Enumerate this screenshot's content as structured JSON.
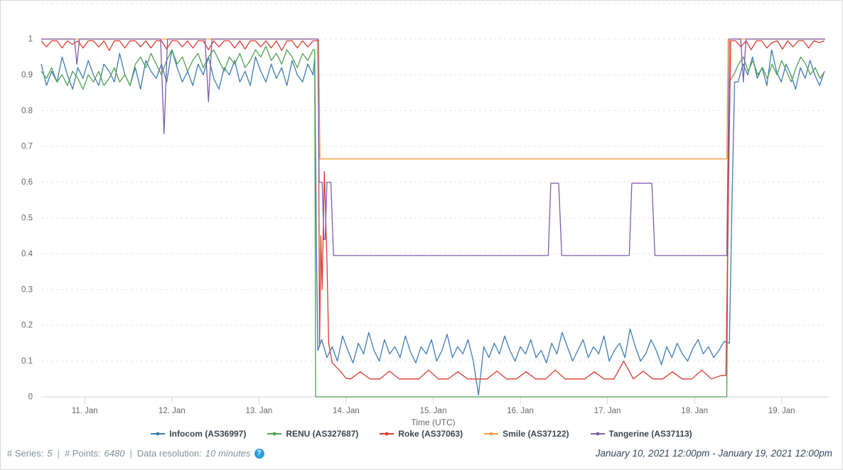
{
  "chart_data": {
    "type": "line",
    "title": "",
    "xlabel": "Time (UTC)",
    "ylabel": "",
    "x_unit": "days since January 10, 2021 12:00pm UTC",
    "x_range": [
      0,
      9
    ],
    "ylim": [
      0,
      1.1
    ],
    "grid": "horizontal-dashed",
    "legend_position": "bottom",
    "y_ticks": [
      {
        "value": 1,
        "label": "1"
      },
      {
        "value": 0.9,
        "label": "0.9"
      },
      {
        "value": 0.8,
        "label": "0.8"
      },
      {
        "value": 0.7,
        "label": "0.7"
      },
      {
        "value": 0.6,
        "label": "0.6"
      },
      {
        "value": 0.5,
        "label": "0.5"
      },
      {
        "value": 0.4,
        "label": "0.4"
      },
      {
        "value": 0.3,
        "label": "0.3"
      },
      {
        "value": 0.2,
        "label": "0.2"
      },
      {
        "value": 0.1,
        "label": "0.1"
      },
      {
        "value": 0,
        "label": "0"
      }
    ],
    "x_ticks": [
      {
        "t": 0.5,
        "label": "11. Jan"
      },
      {
        "t": 1.5,
        "label": "12. Jan"
      },
      {
        "t": 2.5,
        "label": "13. Jan"
      },
      {
        "t": 3.5,
        "label": "14. Jan"
      },
      {
        "t": 4.5,
        "label": "15. Jan"
      },
      {
        "t": 5.5,
        "label": "16. Jan"
      },
      {
        "t": 6.5,
        "label": "17. Jan"
      },
      {
        "t": 7.5,
        "label": "18. Jan"
      },
      {
        "t": 8.5,
        "label": "19. Jan"
      }
    ],
    "series": [
      {
        "name": "Infocom (AS36997)",
        "color": "#3d7bb5",
        "segments": [
          {
            "t0": 0,
            "dt": 0.06,
            "values": [
              0.93,
              0.87,
              0.91,
              0.88,
              0.95,
              0.9,
              0.86,
              0.92,
              0.89,
              0.94,
              0.9,
              0.87,
              0.93,
              0.91,
              0.88,
              0.96,
              0.9,
              0.87,
              0.92,
              0.86,
              0.94,
              0.91,
              0.89,
              0.93,
              0.88,
              0.97,
              0.92,
              0.88,
              0.91,
              0.87,
              0.93,
              0.9,
              0.95,
              0.89,
              0.86,
              0.92,
              0.9,
              0.94,
              0.88,
              0.91,
              0.87,
              0.95,
              0.91,
              0.88,
              0.93,
              0.89,
              0.92,
              0.87,
              0.94,
              0.9,
              0.88,
              0.93,
              0.9
            ]
          },
          {
            "points": [
              [
                3.14,
                0.95
              ],
              [
                3.16,
                0.4
              ],
              [
                3.175,
                0.13
              ]
            ]
          },
          {
            "t0": 3.22,
            "dt": 0.06,
            "values": [
              0.16,
              0.11,
              0.14,
              0.1,
              0.17,
              0.13,
              0.095,
              0.15,
              0.12,
              0.18,
              0.13,
              0.1,
              0.16,
              0.12,
              0.14,
              0.11,
              0.17,
              0.125,
              0.095,
              0.14,
              0.12,
              0.16,
              0.1,
              0.13,
              0.175,
              0.11,
              0.14,
              0.12,
              0.16,
              0.1,
              0.005,
              0.14,
              0.11,
              0.15,
              0.12,
              0.17,
              0.13,
              0.1,
              0.14,
              0.12,
              0.16,
              0.11,
              0.13,
              0.095,
              0.15,
              0.12,
              0.18,
              0.14,
              0.1,
              0.13,
              0.16,
              0.11,
              0.14,
              0.12,
              0.17,
              0.1,
              0.13,
              0.15,
              0.11,
              0.19,
              0.14,
              0.1,
              0.12,
              0.16,
              0.13,
              0.09,
              0.14,
              0.11,
              0.15,
              0.12,
              0.1,
              0.135,
              0.16,
              0.12,
              0.14,
              0.11,
              0.13,
              0.155
            ]
          },
          {
            "points": [
              [
                7.9,
                0.15
              ],
              [
                7.93,
                0.55
              ],
              [
                7.96,
                0.88
              ]
            ]
          },
          {
            "t0": 8.0,
            "dt": 0.055,
            "values": [
              0.88,
              0.93,
              0.9,
              0.95,
              0.89,
              0.92,
              0.87,
              0.97,
              0.91,
              0.88,
              0.93,
              0.9,
              0.86,
              0.92,
              0.89,
              0.94,
              0.9,
              0.87,
              0.91
            ]
          }
        ]
      },
      {
        "name": "RENU (AS327687)",
        "color": "#4fa14f",
        "segments": [
          {
            "t0": 0,
            "dt": 0.06,
            "values": [
              0.91,
              0.89,
              0.92,
              0.88,
              0.9,
              0.87,
              0.91,
              0.89,
              0.86,
              0.9,
              0.88,
              0.91,
              0.87,
              0.89,
              0.92,
              0.88,
              0.9,
              0.87,
              0.93,
              0.95,
              0.92,
              0.96,
              0.93,
              0.9,
              0.94,
              0.97,
              0.93,
              0.95,
              0.91,
              0.94,
              0.96,
              0.92,
              0.95,
              0.97,
              0.94,
              0.91,
              0.95,
              0.93,
              0.96,
              0.92,
              0.94,
              0.97,
              0.95,
              0.98,
              0.94,
              0.96,
              0.93,
              0.97,
              0.95,
              0.92,
              0.96,
              0.94,
              0.97
            ]
          },
          {
            "points": [
              [
                3.14,
                0.97
              ],
              [
                3.15,
                0.0
              ],
              [
                7.87,
                0.0
              ],
              [
                7.895,
                0.88
              ]
            ]
          },
          {
            "t0": 7.95,
            "dt": 0.055,
            "values": [
              0.9,
              0.93,
              0.95,
              0.91,
              0.94,
              0.9,
              0.92,
              0.89,
              0.93,
              0.9,
              0.94,
              0.91,
              0.88,
              0.92,
              0.95,
              0.93,
              0.9,
              0.92,
              0.89,
              0.91
            ]
          }
        ]
      },
      {
        "name": "Roke (AS37063)",
        "color": "#dc3a2e",
        "segments": [
          {
            "t0": 0,
            "dt": 0.06,
            "values": [
              0.995,
              0.978,
              0.995,
              0.995,
              0.975,
              0.995,
              0.985,
              0.995,
              0.975,
              0.995,
              0.995,
              0.978,
              0.995,
              0.968,
              0.995,
              0.995,
              0.975,
              0.995,
              0.995,
              0.978,
              0.995,
              0.975,
              0.995,
              0.995,
              0.972,
              0.995,
              0.995,
              0.978,
              0.995,
              0.975,
              0.995,
              0.995,
              0.97,
              0.995,
              0.978,
              0.995,
              0.995,
              0.975,
              0.995,
              0.972,
              0.995,
              0.995,
              0.978,
              0.995,
              0.975,
              0.995,
              0.968,
              0.995,
              0.995,
              0.975,
              0.995,
              0.978,
              0.995
            ]
          },
          {
            "points": [
              [
                3.18,
                0.995
              ],
              [
                3.195,
                0.14
              ],
              [
                3.21,
                0.45
              ],
              [
                3.225,
                0.3
              ],
              [
                3.25,
                0.63
              ],
              [
                3.28,
                0.38
              ],
              [
                3.3,
                0.15
              ],
              [
                3.34,
                0.095
              ],
              [
                3.42,
                0.075
              ],
              [
                3.5,
                0.052
              ]
            ]
          },
          {
            "t0": 3.55,
            "dt": 0.112,
            "values": [
              0.05,
              0.07,
              0.05,
              0.05,
              0.072,
              0.05,
              0.05,
              0.05,
              0.075,
              0.05,
              0.05,
              0.07,
              0.05,
              0.05,
              0.05,
              0.072,
              0.05,
              0.05,
              0.07,
              0.05,
              0.05,
              0.075,
              0.05,
              0.05,
              0.05,
              0.07,
              0.05,
              0.05,
              0.1,
              0.05,
              0.072,
              0.05,
              0.05,
              0.07,
              0.05,
              0.05,
              0.075,
              0.05,
              0.06
            ]
          },
          {
            "points": [
              [
                7.86,
                0.06
              ],
              [
                7.89,
                0.6
              ],
              [
                7.915,
                0.995
              ]
            ]
          },
          {
            "t0": 7.97,
            "dt": 0.06,
            "values": [
              0.995,
              0.978,
              0.995,
              0.97,
              0.995,
              0.995,
              0.975,
              0.99,
              0.995,
              0.972,
              0.995,
              0.978,
              0.995,
              0.995,
              0.975,
              0.995,
              0.99,
              0.995
            ]
          }
        ]
      },
      {
        "name": "Smile (AS37122)",
        "color": "#f69b40",
        "segments": [
          {
            "points": [
              [
                0,
                1
              ],
              [
                3.185,
                1
              ],
              [
                3.2,
                0.665
              ],
              [
                7.87,
                0.665
              ],
              [
                7.885,
                1
              ],
              [
                9,
                1
              ]
            ]
          }
        ]
      },
      {
        "name": "Tangerine (AS37113)",
        "color": "#7e5ca8",
        "segments": [
          {
            "points": [
              [
                0,
                1
              ],
              [
                0.38,
                1
              ],
              [
                0.41,
                0.93
              ],
              [
                0.44,
                1
              ],
              [
                1.37,
                1
              ],
              [
                1.41,
                0.735
              ],
              [
                1.45,
                1
              ],
              [
                1.88,
                1
              ],
              [
                1.92,
                0.825
              ],
              [
                1.96,
                1
              ],
              [
                3.175,
                1
              ],
              [
                3.19,
                0.6
              ],
              [
                3.225,
                0.6
              ],
              [
                3.245,
                0.44
              ],
              [
                3.26,
                0.44
              ],
              [
                3.28,
                0.6
              ],
              [
                3.325,
                0.6
              ],
              [
                3.355,
                0.395
              ],
              [
                5.82,
                0.395
              ],
              [
                5.85,
                0.597
              ],
              [
                5.94,
                0.597
              ],
              [
                5.975,
                0.395
              ],
              [
                6.75,
                0.395
              ],
              [
                6.78,
                0.597
              ],
              [
                7.01,
                0.597
              ],
              [
                7.045,
                0.395
              ],
              [
                7.87,
                0.395
              ],
              [
                7.9,
                1
              ],
              [
                8.03,
                1
              ],
              [
                8.06,
                0.88
              ],
              [
                8.09,
                1
              ],
              [
                9,
                1
              ]
            ]
          }
        ]
      }
    ]
  },
  "footer": {
    "series_label": "# Series:",
    "series_value": "5",
    "points_label": "# Points:",
    "points_value": "6480",
    "resolution_label": "Data resolution:",
    "resolution_value": "10 minutes",
    "separator": "|",
    "help_icon": "?",
    "date_range": "January 10, 2021 12:00pm - January 19, 2021 12:00pm"
  }
}
